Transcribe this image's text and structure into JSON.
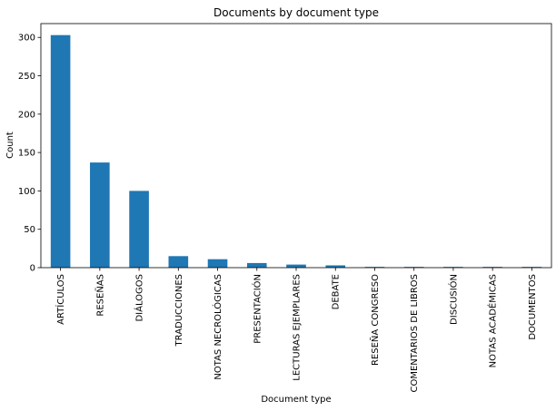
{
  "chart_data": {
    "type": "bar",
    "title": "Documents by document type",
    "xlabel": "Document type",
    "ylabel": "Count",
    "categories": [
      "ARTÍCULOS",
      "RESEÑAS",
      "DIÁLOGOS",
      "TRADUCCIONES",
      "NOTAS NECROLÓGICAS",
      "PRESENTACIÓN",
      "LECTURAS EJEMPLARES",
      "DEBATE",
      "RESEÑA CONGRESO",
      "COMENTARIOS DE LIBROS",
      "DISCUSIÓN",
      "NOTAS ACADÉMICAS",
      "DOCUMENTOS"
    ],
    "values": [
      303,
      137,
      100,
      15,
      11,
      6,
      4,
      3,
      1,
      1,
      1,
      1,
      1
    ],
    "ylim": [
      0,
      318
    ],
    "yticks": [
      0,
      50,
      100,
      150,
      200,
      250,
      300
    ],
    "bar_color": "#1f77b4",
    "grid": false,
    "legend": false
  }
}
